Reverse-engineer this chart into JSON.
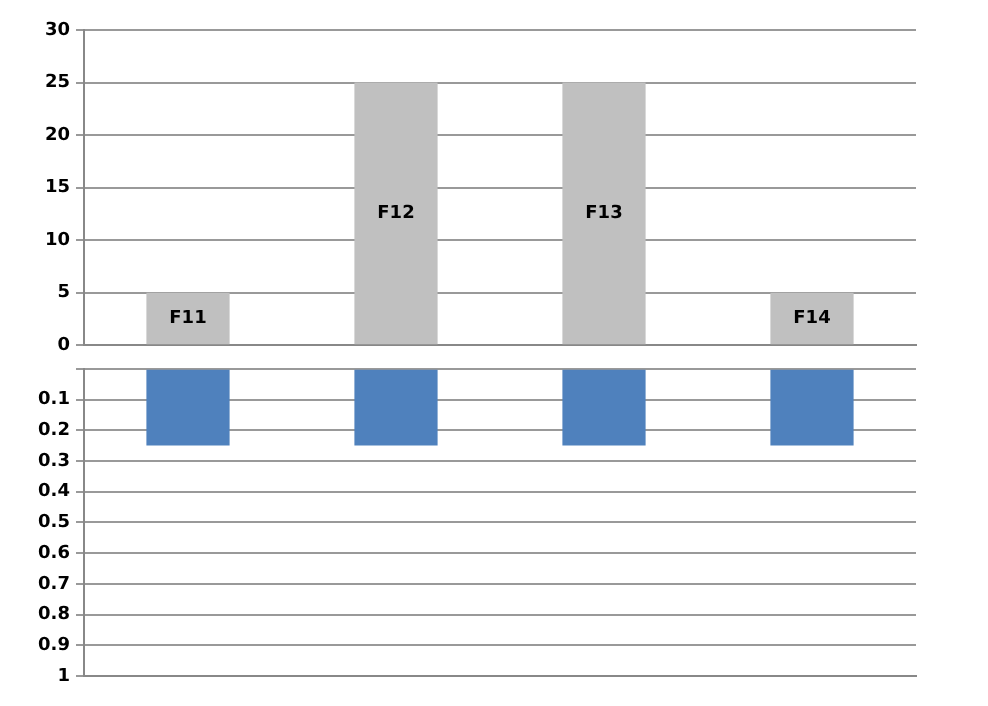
{
  "chart_data": [
    {
      "type": "bar",
      "categories": [
        null,
        null,
        null,
        null
      ],
      "values": [
        5,
        25,
        25,
        5
      ],
      "color": "#c0c0c0",
      "value_labels": [
        "F11",
        "F12",
        "F13",
        "F14"
      ],
      "ylim": [
        0,
        30
      ],
      "yticks": [
        0,
        5,
        10,
        15,
        20,
        25,
        30
      ],
      "grid": "y",
      "tick_labels": "y"
    },
    {
      "type": "bar",
      "categories": [
        null,
        null,
        null,
        null
      ],
      "values": [
        0.25,
        0.25,
        0.25,
        0.25
      ],
      "color": "#4f81bd",
      "ylim": [
        1,
        0
      ],
      "yticks": [
        {
          "value": 0,
          "label": null
        },
        0.1,
        0.2,
        0.3,
        0.4,
        0.5,
        0.6,
        0.7,
        0.8,
        0.9,
        1
      ],
      "grid": "y",
      "tick_labels": "y"
    }
  ]
}
